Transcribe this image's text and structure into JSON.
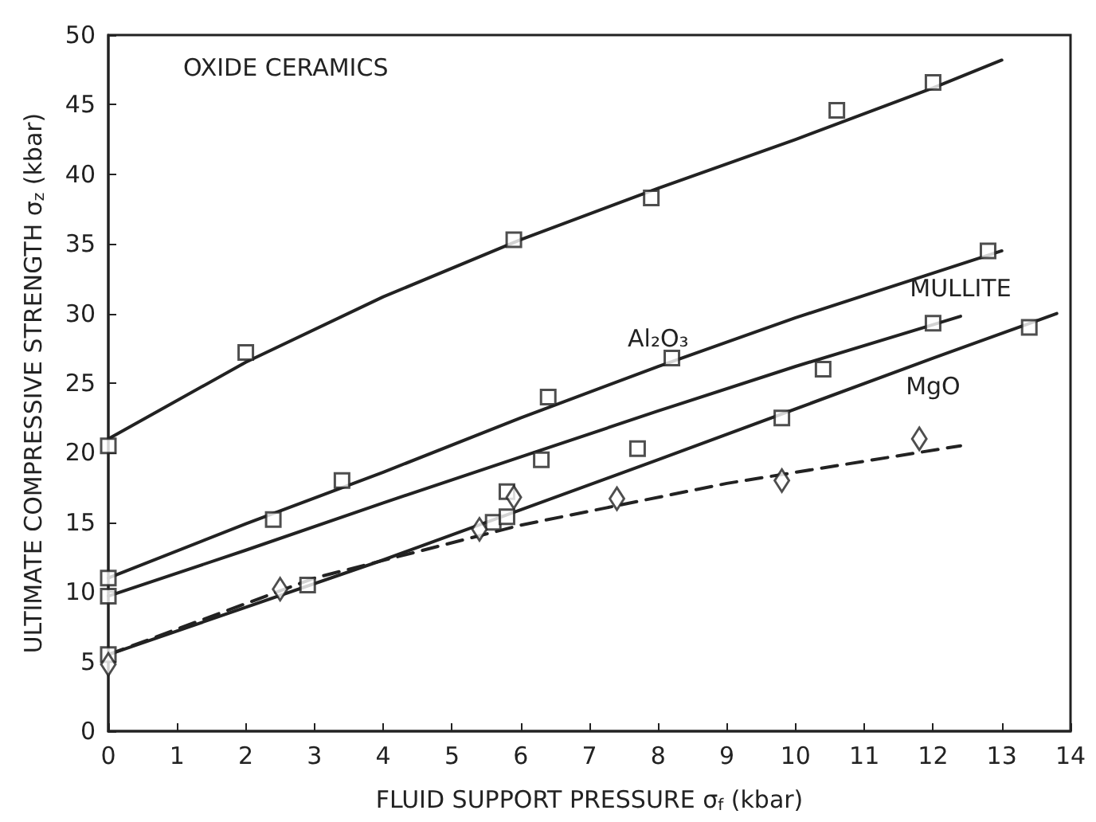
{
  "chart_data": {
    "type": "scatter",
    "title": "OXIDE CERAMICS",
    "xlabel": "FLUID SUPPORT PRESSURE σ$_{f}$ (kbar)",
    "ylabel": "ULTIMATE COMPRESSIVE STRENGTH σ$_{z}$ (kbar)",
    "xlim": [
      0,
      14
    ],
    "xticks": [
      0,
      1,
      2,
      3,
      4,
      5,
      6,
      7,
      8,
      9,
      10,
      11,
      12,
      13,
      14
    ],
    "ylim": [
      0,
      50
    ],
    "yticks": [
      0,
      5,
      10,
      15,
      20,
      25,
      30,
      35,
      40,
      45,
      50
    ],
    "grid": false,
    "legend": false,
    "series": [
      {
        "marker": "square",
        "color": "#222222",
        "x": [
          0,
          2,
          5.9,
          7.9,
          10.6,
          12
        ],
        "values": [
          20.5,
          27.2,
          35.3,
          38.3,
          44.6,
          46.6
        ]
      },
      {
        "type": "line",
        "marker": "none",
        "line_style": "solid",
        "color": "#222222",
        "x": [
          0,
          2,
          4,
          6,
          8,
          10,
          12,
          13
        ],
        "values": [
          21,
          26.5,
          31.2,
          35.3,
          39,
          42.5,
          46.2,
          48.2
        ]
      },
      {
        "marker": "square",
        "color": "#222222",
        "x": [
          0,
          3.4,
          6.4,
          8.2,
          12.8
        ],
        "values": [
          11,
          18,
          24,
          26.8,
          34.5
        ]
      },
      {
        "type": "line",
        "name": "Al₂O₃",
        "marker": "none",
        "line_style": "solid",
        "color": "#222222",
        "x": [
          0,
          2,
          4,
          6,
          8,
          10,
          12,
          13
        ],
        "values": [
          11,
          14.9,
          18.6,
          22.5,
          26.2,
          29.7,
          32.9,
          34.5
        ]
      },
      {
        "marker": "square",
        "color": "#222222",
        "x": [
          0,
          2.4,
          6.3,
          10.4,
          12
        ],
        "values": [
          9.7,
          15.2,
          19.5,
          26,
          29.3
        ]
      },
      {
        "type": "line",
        "name": "MULLITE",
        "marker": "none",
        "line_style": "solid",
        "color": "#222222",
        "x": [
          0,
          2,
          4,
          6,
          8,
          10,
          12.4
        ],
        "values": [
          9.7,
          13,
          16.4,
          19.7,
          23,
          26.2,
          29.8
        ]
      },
      {
        "marker": "square",
        "color": "#222222",
        "x": [
          0,
          2.9,
          5.6,
          5.8,
          5.8,
          7.7,
          9.8,
          13.4
        ],
        "values": [
          5.5,
          10.5,
          15,
          15.4,
          17.2,
          20.3,
          22.5,
          29
        ]
      },
      {
        "type": "line",
        "name": "MgO",
        "marker": "none",
        "line_style": "solid",
        "color": "#222222",
        "x": [
          0,
          4,
          8,
          12,
          13.8
        ],
        "values": [
          5.5,
          12.3,
          19.5,
          26.8,
          30
        ]
      },
      {
        "marker": "diamond",
        "color": "#222222",
        "x": [
          0,
          2.5,
          5.4,
          5.9,
          7.4,
          9.8,
          11.8
        ],
        "values": [
          4.8,
          10.2,
          14.5,
          16.8,
          16.7,
          18,
          21
        ]
      },
      {
        "type": "line",
        "marker": "none",
        "line_style": "dashed",
        "color": "#222222",
        "x": [
          0,
          3,
          6,
          9,
          12.4
        ],
        "values": [
          5.5,
          11,
          14.8,
          17.8,
          20.5
        ]
      }
    ]
  }
}
